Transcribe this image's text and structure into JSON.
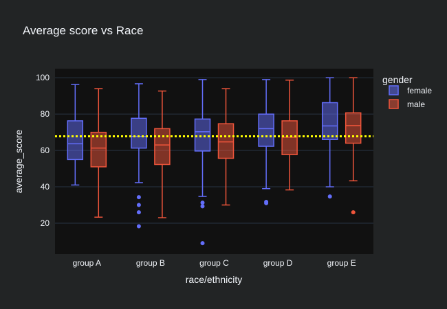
{
  "chart_data": {
    "type": "box",
    "title": "Average score vs Race",
    "xlabel": "race/ethnicity",
    "ylabel": "average_score",
    "categories": [
      "group A",
      "group B",
      "group C",
      "group D",
      "group E"
    ],
    "ylim": [
      3,
      105
    ],
    "yticks": [
      20,
      40,
      60,
      80,
      100
    ],
    "grid": true,
    "legend_title": "gender",
    "legend_position": "top-right",
    "reference_line": {
      "y": 67.8,
      "color": "#ffff00",
      "style": "dotted"
    },
    "series": [
      {
        "name": "female",
        "color": "#636efa",
        "boxes": [
          {
            "min": 41,
            "q1": 55,
            "median": 63.7,
            "q3": 76.3,
            "max": 96.3,
            "outliers": []
          },
          {
            "min": 42.3,
            "q1": 61.3,
            "median": 67.7,
            "q3": 77.7,
            "max": 96.7,
            "outliers": [
              34.3,
              30,
              26,
              18.3
            ]
          },
          {
            "min": 34.7,
            "q1": 59.7,
            "median": 70.3,
            "q3": 77.3,
            "max": 99,
            "outliers": [
              31.3,
              29.3,
              9
            ]
          },
          {
            "min": 39,
            "q1": 62.3,
            "median": 72,
            "q3": 80,
            "max": 99,
            "outliers": [
              31.7,
              31
            ]
          },
          {
            "min": 40,
            "q1": 66,
            "median": 73.5,
            "q3": 86.3,
            "max": 100,
            "outliers": [
              34.7
            ]
          }
        ]
      },
      {
        "name": "male",
        "color": "#ef553b",
        "boxes": [
          {
            "min": 23.3,
            "q1": 51,
            "median": 61.3,
            "q3": 70,
            "max": 94,
            "outliers": []
          },
          {
            "min": 23,
            "q1": 52.3,
            "median": 63,
            "q3": 72,
            "max": 92.7,
            "outliers": []
          },
          {
            "min": 30,
            "q1": 55.7,
            "median": 64.7,
            "q3": 74.7,
            "max": 94,
            "outliers": []
          },
          {
            "min": 38.3,
            "q1": 57.7,
            "median": 67.3,
            "q3": 76.3,
            "max": 98.7,
            "outliers": []
          },
          {
            "min": 43.3,
            "q1": 64,
            "median": 73.7,
            "q3": 80.7,
            "max": 100,
            "outliers": [
              26
            ]
          }
        ]
      }
    ]
  }
}
